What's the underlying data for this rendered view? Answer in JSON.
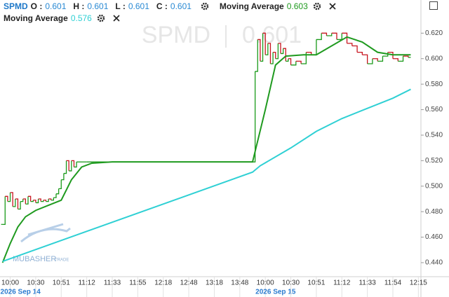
{
  "chart_data": {
    "type": "line",
    "title": "SPMD",
    "ohlc": [
      {
        "label": "O :",
        "value": 0.601
      },
      {
        "label": "H :",
        "value": 0.601
      },
      {
        "label": "L :",
        "value": 0.601
      },
      {
        "label": "C :",
        "value": 0.601
      }
    ],
    "watermark": "0.601",
    "logo": [
      "MUBASHER",
      "TRADE"
    ],
    "xlim": [
      -4,
      161
    ],
    "ylim": [
      0.429,
      0.646
    ],
    "yticks": [
      {
        "value": 0.44,
        "label": "0.440"
      },
      {
        "value": 0.46,
        "label": "0.460"
      },
      {
        "value": 0.48,
        "label": "0.480"
      },
      {
        "value": 0.5,
        "label": "0.500"
      },
      {
        "value": 0.52,
        "label": "0.520"
      },
      {
        "value": 0.54,
        "label": "0.540"
      },
      {
        "value": 0.56,
        "label": "0.560"
      },
      {
        "value": 0.58,
        "label": "0.580"
      },
      {
        "value": 0.6,
        "label": "0.600"
      },
      {
        "value": 0.62,
        "label": "0.620"
      }
    ],
    "xticks": [
      {
        "value": 0,
        "label": "10:00",
        "date": "2026 Sep 14"
      },
      {
        "value": 10,
        "label": "10:30"
      },
      {
        "value": 20,
        "label": "10:51"
      },
      {
        "value": 30,
        "label": "11:12"
      },
      {
        "value": 40,
        "label": "11:33"
      },
      {
        "value": 50,
        "label": "11:55"
      },
      {
        "value": 60,
        "label": "12:18"
      },
      {
        "value": 70,
        "label": "12:48"
      },
      {
        "value": 80,
        "label": "13:18"
      },
      {
        "value": 90,
        "label": "13:48"
      },
      {
        "value": 100,
        "label": "10:00",
        "date": "2026 Sep 15"
      },
      {
        "value": 110,
        "label": "10:30"
      },
      {
        "value": 120,
        "label": "10:51"
      },
      {
        "value": 130,
        "label": "11:12"
      },
      {
        "value": 140,
        "label": "11:33"
      },
      {
        "value": 150,
        "label": "11:54"
      },
      {
        "value": 160,
        "label": "12:15"
      }
    ],
    "grid": true,
    "series": [
      {
        "name": "SPMD",
        "color_up": "#1a9a1a",
        "color_down": "#c8141e",
        "x": [
          -3,
          -2,
          -1,
          0,
          1,
          2,
          3,
          4,
          5,
          6,
          7,
          8,
          9,
          10,
          11,
          12,
          13,
          14,
          15,
          16,
          17,
          18,
          19,
          20,
          21,
          22,
          23,
          24,
          25,
          26,
          30,
          40,
          50,
          60,
          70,
          80,
          90,
          95,
          96,
          97,
          98,
          99,
          100,
          101,
          102,
          103,
          104,
          105,
          106,
          107,
          108,
          109,
          110,
          112,
          114,
          116,
          118,
          120,
          122,
          124,
          126,
          128,
          130,
          132,
          134,
          136,
          138,
          140,
          142,
          144,
          146,
          148,
          150,
          152,
          154,
          156,
          157
        ],
        "values": [
          0.47,
          0.492,
          0.488,
          0.495,
          0.484,
          0.49,
          0.482,
          0.488,
          0.49,
          0.486,
          0.492,
          0.488,
          0.489,
          0.487,
          0.49,
          0.488,
          0.489,
          0.488,
          0.49,
          0.489,
          0.491,
          0.494,
          0.498,
          0.505,
          0.51,
          0.52,
          0.512,
          0.52,
          0.515,
          0.519,
          0.519,
          0.519,
          0.519,
          0.519,
          0.519,
          0.519,
          0.519,
          0.519,
          0.59,
          0.615,
          0.598,
          0.62,
          0.603,
          0.612,
          0.596,
          0.605,
          0.6,
          0.612,
          0.604,
          0.608,
          0.598,
          0.6,
          0.595,
          0.598,
          0.596,
          0.605,
          0.603,
          0.615,
          0.62,
          0.618,
          0.62,
          0.615,
          0.62,
          0.612,
          0.61,
          0.605,
          0.603,
          0.596,
          0.6,
          0.598,
          0.602,
          0.605,
          0.6,
          0.598,
          0.602,
          0.601,
          0.601
        ]
      },
      {
        "name": "Moving Average",
        "last": 0.603,
        "color": "#1f9a1f",
        "x": [
          -3,
          0,
          3,
          6,
          10,
          15,
          20,
          24,
          28,
          32,
          40,
          95,
          100,
          104,
          108,
          115,
          120,
          126,
          132,
          138,
          144,
          150,
          157
        ],
        "values": [
          0.44,
          0.455,
          0.468,
          0.476,
          0.481,
          0.485,
          0.489,
          0.505,
          0.515,
          0.518,
          0.519,
          0.519,
          0.56,
          0.595,
          0.602,
          0.603,
          0.603,
          0.61,
          0.617,
          0.613,
          0.605,
          0.603,
          0.603
        ]
      },
      {
        "name": "Moving Average",
        "last": 0.576,
        "color": "#2fd0d4",
        "x": [
          -3,
          95,
          98,
          110,
          120,
          130,
          140,
          150,
          157
        ],
        "values": [
          0.441,
          0.511,
          0.516,
          0.53,
          0.543,
          0.553,
          0.561,
          0.569,
          0.576
        ]
      }
    ]
  }
}
